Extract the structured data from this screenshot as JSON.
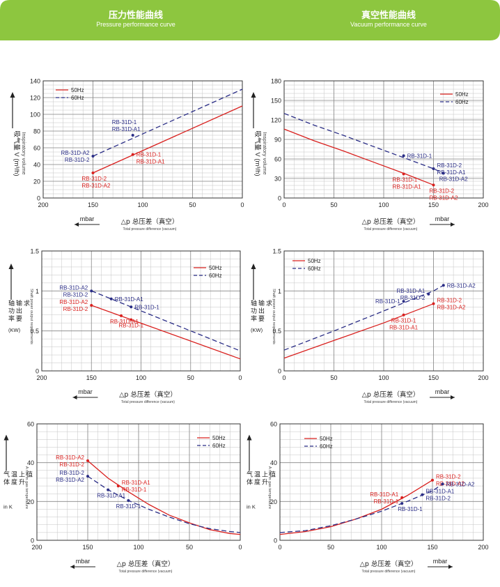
{
  "header": {
    "left_title": "压力性能曲线",
    "left_sub": "Pressure performance curve",
    "right_title": "真空性能曲线",
    "right_sub": "Vacuum performance curve",
    "banner_color": "#8dc63f"
  },
  "colors": {
    "red": "#d9201e",
    "blue": "#2a2d86"
  },
  "legend_labels": [
    "50Hz",
    "60Hz"
  ],
  "arrow_label": "mbar",
  "bottom_caption": "△p  总压差（真空）",
  "bottom_caption_en": "Total pressure difference (vacuum)",
  "chart_data": [
    {
      "type": "line",
      "id": "pressure-flow",
      "xlim": [
        200,
        0
      ],
      "ylim": [
        0,
        140
      ],
      "xticks": [
        "200",
        "150",
        "100",
        "50",
        "0"
      ],
      "yticks": [
        "0",
        "20",
        "40",
        "60",
        "80",
        "100",
        "120",
        "140"
      ],
      "ylabel_cn": "吸气量",
      "ylabel_en": "Inspiratory volume",
      "ylabel_unit": "V (m³/h)",
      "series": [
        {
          "name": "50Hz",
          "color": "red",
          "dash": false,
          "x": [
            150,
            0
          ],
          "y": [
            30,
            110
          ]
        },
        {
          "name": "60Hz",
          "color": "blue",
          "dash": true,
          "x": [
            150,
            0
          ],
          "y": [
            50,
            130
          ]
        }
      ],
      "points": [
        {
          "color": "red",
          "x": 150,
          "y": 30,
          "labels": [
            "RB-31D-2",
            "RB-31D-A2"
          ],
          "pos": "below-left"
        },
        {
          "color": "red",
          "x": 110,
          "y": 52,
          "labels": [
            "RB-31D-1",
            "RB-31D-A1"
          ],
          "pos": "right-down"
        },
        {
          "color": "blue",
          "x": 150,
          "y": 50,
          "labels": [
            "RB-31D-A2",
            "RB-31D-2"
          ],
          "pos": "left"
        },
        {
          "color": "blue",
          "x": 110,
          "y": 75,
          "labels": [
            "RB-31D-1",
            "RB-31D-A1"
          ],
          "pos": "above-left"
        }
      ]
    },
    {
      "type": "line",
      "id": "vacuum-flow",
      "xlim": [
        0,
        200
      ],
      "ylim": [
        0,
        180
      ],
      "xticks": [
        "0",
        "50",
        "100",
        "150",
        "200"
      ],
      "yticks": [
        "0",
        "30",
        "60",
        "90",
        "120",
        "150",
        "180"
      ],
      "ylabel_cn": "吸气量",
      "ylabel_en": "Inspiratory volume",
      "ylabel_unit": "V (m³/h)",
      "series": [
        {
          "name": "50Hz",
          "color": "red",
          "dash": false,
          "x": [
            0,
            30,
            60,
            90,
            120,
            150
          ],
          "y": [
            106,
            88,
            72,
            55,
            38,
            20
          ]
        },
        {
          "name": "60Hz",
          "color": "blue",
          "dash": true,
          "x": [
            0,
            30,
            60,
            90,
            120,
            150,
            160
          ],
          "y": [
            130,
            112,
            96,
            79,
            62,
            45,
            38
          ]
        }
      ],
      "points": [
        {
          "color": "red",
          "x": 120,
          "y": 37,
          "labels": [
            "RB-31D-1",
            "RB-31D-A1"
          ],
          "pos": "below-left"
        },
        {
          "color": "red",
          "x": 150,
          "y": 20,
          "labels": [
            "RB-31D-2",
            "RB-31D-A2"
          ],
          "pos": "below-right"
        },
        {
          "color": "blue",
          "x": 120,
          "y": 65,
          "labels": [
            "RB-31D-1"
          ],
          "pos": "right"
        },
        {
          "color": "blue",
          "x": 150,
          "y": 45,
          "labels": [
            "RB-31D-2",
            "RB-31D-A1"
          ],
          "pos": "right"
        },
        {
          "color": "blue",
          "x": 160,
          "y": 38,
          "labels": [
            "RB-31D-A2"
          ],
          "pos": "below-right"
        }
      ]
    },
    {
      "type": "line",
      "id": "pressure-power",
      "xlim": [
        200,
        0
      ],
      "ylim": [
        0,
        1.5
      ],
      "xticks": [
        "200",
        "150",
        "100",
        "50",
        "0"
      ],
      "yticks": [
        "0",
        "0.5",
        "1",
        "1.5"
      ],
      "ylabel_cn": "轴功率输出要求",
      "ylabel_en": "Shaft power output requirements",
      "ylabel_unit": "(KW)",
      "series": [
        {
          "name": "50Hz",
          "color": "red",
          "dash": false,
          "x": [
            150,
            0
          ],
          "y": [
            0.82,
            0.15
          ]
        },
        {
          "name": "60Hz",
          "color": "blue",
          "dash": true,
          "x": [
            150,
            0
          ],
          "y": [
            1.0,
            0.25
          ]
        }
      ],
      "points": [
        {
          "color": "red",
          "x": 150,
          "y": 0.82,
          "labels": [
            "RB-31D-A2",
            "RB-31D-2"
          ],
          "pos": "left"
        },
        {
          "color": "red",
          "x": 120,
          "y": 0.69,
          "labels": [
            "RB-31D-A1"
          ],
          "pos": "below-left"
        },
        {
          "color": "red",
          "x": 110,
          "y": 0.64,
          "labels": [
            "RB-31D-1"
          ],
          "pos": "below-center"
        },
        {
          "color": "blue",
          "x": 150,
          "y": 1.0,
          "labels": [
            "RB-31D-A2",
            "RB-31D-2"
          ],
          "pos": "left"
        },
        {
          "color": "blue",
          "x": 130,
          "y": 0.9,
          "labels": [
            "RB-31D-A1"
          ],
          "pos": "right"
        },
        {
          "color": "blue",
          "x": 110,
          "y": 0.8,
          "labels": [
            "RB-31D-1"
          ],
          "pos": "right"
        }
      ]
    },
    {
      "type": "line",
      "id": "vacuum-power",
      "xlim": [
        0,
        200
      ],
      "ylim": [
        0,
        1.5
      ],
      "xticks": [
        "0",
        "50",
        "100",
        "150",
        "200"
      ],
      "yticks": [
        "0",
        "0.5",
        "1",
        "1.5"
      ],
      "ylabel_cn": "轴功率输出要求",
      "ylabel_en": "Shaft power output requirements",
      "ylabel_unit": "(KW)",
      "series": [
        {
          "name": "50Hz",
          "color": "red",
          "dash": false,
          "x": [
            0,
            50,
            100,
            150
          ],
          "y": [
            0.16,
            0.38,
            0.6,
            0.84
          ]
        },
        {
          "name": "60Hz",
          "color": "blue",
          "dash": true,
          "x": [
            0,
            50,
            100,
            150,
            160
          ],
          "y": [
            0.26,
            0.5,
            0.75,
            1.0,
            1.07
          ]
        }
      ],
      "points": [
        {
          "color": "red",
          "x": 120,
          "y": 0.7,
          "labels": [
            "RB-31D-1",
            "RB-31D-A1"
          ],
          "pos": "below-center"
        },
        {
          "color": "red",
          "x": 150,
          "y": 0.84,
          "labels": [
            "RB-31D-2",
            "RB-31D-A2"
          ],
          "pos": "right"
        },
        {
          "color": "blue",
          "x": 120,
          "y": 0.87,
          "labels": [
            "RB-31D-1"
          ],
          "pos": "left"
        },
        {
          "color": "blue",
          "x": 145,
          "y": 0.96,
          "labels": [
            "RB-31D-A1",
            "RB-31D-2"
          ],
          "pos": "left"
        },
        {
          "color": "blue",
          "x": 160,
          "y": 1.07,
          "labels": [
            "RB-31D-A2"
          ],
          "pos": "right"
        }
      ]
    },
    {
      "type": "line",
      "id": "pressure-temp",
      "xlim": [
        200,
        0
      ],
      "ylim": [
        0,
        60
      ],
      "xticks": [
        "200",
        "150",
        "100",
        "50",
        "0"
      ],
      "yticks": [
        "0",
        "20",
        "40",
        "60"
      ],
      "ylabel_cn": "气体温度上升值",
      "ylabel_en": "A rise in gas temperature",
      "ylabel_unit": "in K",
      "series": [
        {
          "name": "50Hz",
          "color": "red",
          "dash": false,
          "x": [
            150,
            130,
            110,
            90,
            70,
            50,
            30,
            10,
            0
          ],
          "y": [
            41,
            32,
            25,
            18.5,
            13,
            9,
            5.5,
            3.5,
            3
          ]
        },
        {
          "name": "60Hz",
          "color": "blue",
          "dash": true,
          "x": [
            150,
            130,
            110,
            90,
            70,
            50,
            30,
            10,
            0
          ],
          "y": [
            33,
            26,
            20.5,
            16,
            12,
            8.5,
            6,
            4.5,
            4
          ]
        }
      ],
      "points": [
        {
          "color": "red",
          "x": 150,
          "y": 41,
          "labels": [
            "RB-31D-A2",
            "RB-31D-2"
          ],
          "pos": "left"
        },
        {
          "color": "red",
          "x": 120,
          "y": 28,
          "labels": [
            "RB-31D-A1",
            "RB-31D-1"
          ],
          "pos": "right"
        },
        {
          "color": "blue",
          "x": 150,
          "y": 33,
          "labels": [
            "RB-31D-2",
            "RB-31D-A2"
          ],
          "pos": "left"
        },
        {
          "color": "blue",
          "x": 130,
          "y": 26,
          "labels": [
            "RB-31D-A1"
          ],
          "pos": "below-left"
        },
        {
          "color": "blue",
          "x": 110,
          "y": 20.5,
          "labels": [
            "RB-31D-1"
          ],
          "pos": "below-center"
        }
      ]
    },
    {
      "type": "line",
      "id": "vacuum-temp",
      "xlim": [
        0,
        200
      ],
      "ylim": [
        0,
        60
      ],
      "xticks": [
        "0",
        "50",
        "100",
        "150",
        "200"
      ],
      "yticks": [
        "0",
        "20",
        "40",
        "60"
      ],
      "ylabel_cn": "气体温度上升值",
      "ylabel_en": "A rise in gas temperature",
      "ylabel_unit": "in K",
      "series": [
        {
          "name": "50Hz",
          "color": "red",
          "dash": false,
          "x": [
            0,
            25,
            50,
            75,
            100,
            125,
            150
          ],
          "y": [
            3,
            4.5,
            7,
            11,
            16,
            23,
            31
          ]
        },
        {
          "name": "60Hz",
          "color": "blue",
          "dash": true,
          "x": [
            0,
            25,
            50,
            75,
            100,
            125,
            150,
            160
          ],
          "y": [
            4,
            5,
            7.5,
            11,
            15,
            20,
            25.5,
            29
          ]
        }
      ],
      "points": [
        {
          "color": "red",
          "x": 120,
          "y": 22,
          "labels": [
            "RB-31D-A1",
            "RB-31D-1"
          ],
          "pos": "left"
        },
        {
          "color": "red",
          "x": 150,
          "y": 31,
          "labels": [
            "RB-31D-2",
            "RB-31D-A2"
          ],
          "pos": "right"
        },
        {
          "color": "blue",
          "x": 120,
          "y": 19,
          "labels": [
            "RB-31D-1"
          ],
          "pos": "below-right"
        },
        {
          "color": "blue",
          "x": 140,
          "y": 23.5,
          "labels": [
            "RB-31D-A1",
            "RB-31D-2"
          ],
          "pos": "right"
        },
        {
          "color": "blue",
          "x": 160,
          "y": 29,
          "labels": [
            "RB-31D-A2"
          ],
          "pos": "right"
        }
      ]
    }
  ]
}
